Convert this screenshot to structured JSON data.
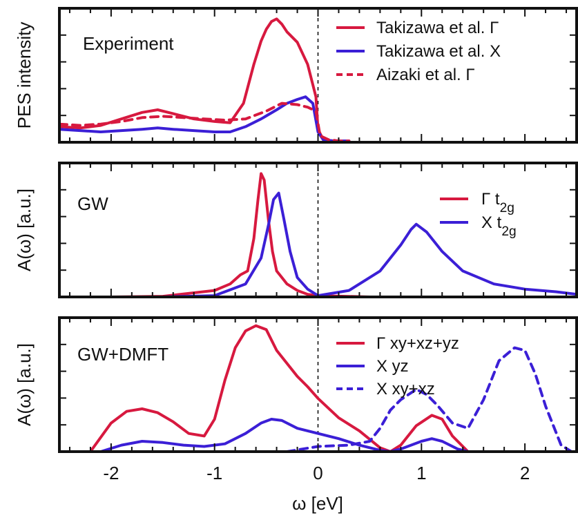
{
  "figure": {
    "xlabel": "ω [eV]"
  },
  "chart_data": [
    {
      "type": "line",
      "id": "panel-experiment",
      "panel_label": "Experiment",
      "ylabel": "PES intensity",
      "xlim": [
        -2.5,
        2.5
      ],
      "ylim": [
        0,
        1.0
      ],
      "x_ticks": [
        -2,
        -1,
        0,
        1,
        2
      ],
      "legend_position": "top-right",
      "series": [
        {
          "name": "Takizawa et al. Γ",
          "color": "#d7193f",
          "dash": "solid",
          "x": [
            -2.5,
            -2.3,
            -2.1,
            -1.9,
            -1.7,
            -1.55,
            -1.4,
            -1.2,
            -1.0,
            -0.85,
            -0.72,
            -0.62,
            -0.55,
            -0.5,
            -0.45,
            -0.4,
            -0.35,
            -0.3,
            -0.2,
            -0.1,
            -0.02,
            0.0,
            0.05,
            0.15,
            0.3
          ],
          "y": [
            0.12,
            0.11,
            0.13,
            0.18,
            0.23,
            0.25,
            0.22,
            0.18,
            0.16,
            0.15,
            0.3,
            0.6,
            0.78,
            0.87,
            0.93,
            0.95,
            0.91,
            0.85,
            0.77,
            0.6,
            0.35,
            0.1,
            0.02,
            0.01,
            0.01
          ]
        },
        {
          "name": "Takizawa et al. X",
          "color": "#3b1fd6",
          "dash": "solid",
          "x": [
            -2.5,
            -2.3,
            -2.1,
            -1.9,
            -1.7,
            -1.55,
            -1.4,
            -1.2,
            -1.0,
            -0.85,
            -0.7,
            -0.55,
            -0.4,
            -0.3,
            -0.2,
            -0.12,
            -0.05,
            0.0,
            0.05,
            0.15,
            0.3
          ],
          "y": [
            0.1,
            0.09,
            0.08,
            0.09,
            0.1,
            0.11,
            0.1,
            0.09,
            0.08,
            0.08,
            0.12,
            0.18,
            0.25,
            0.3,
            0.33,
            0.35,
            0.3,
            0.08,
            0.02,
            0.01,
            0.01
          ]
        },
        {
          "name": "Aizaki et al. Γ",
          "color": "#d7193f",
          "dash": "dashed",
          "x": [
            -2.5,
            -2.3,
            -2.1,
            -1.9,
            -1.7,
            -1.5,
            -1.3,
            -1.1,
            -0.9,
            -0.7,
            -0.5,
            -0.35,
            -0.2,
            -0.1,
            -0.02,
            0.02,
            0.1,
            0.2,
            0.3
          ],
          "y": [
            0.14,
            0.13,
            0.14,
            0.16,
            0.19,
            0.2,
            0.19,
            0.18,
            0.17,
            0.18,
            0.24,
            0.3,
            0.29,
            0.27,
            0.24,
            0.05,
            0.02,
            0.01,
            0.01
          ]
        }
      ]
    },
    {
      "type": "line",
      "id": "panel-gw",
      "panel_label": "GW",
      "ylabel": "A(ω) [a.u.]",
      "xlim": [
        -2.5,
        2.5
      ],
      "ylim": [
        0,
        1.0
      ],
      "x_ticks": [
        -2,
        -1,
        0,
        1,
        2
      ],
      "legend_position": "top-right",
      "series": [
        {
          "name": "Γ t2g",
          "color": "#d7193f",
          "dash": "solid",
          "x": [
            -2.0,
            -1.5,
            -1.0,
            -0.85,
            -0.75,
            -0.68,
            -0.62,
            -0.58,
            -0.55,
            -0.52,
            -0.48,
            -0.44,
            -0.4,
            -0.35,
            -0.3,
            -0.2,
            -0.1,
            0.0,
            0.5,
            1.0,
            1.5,
            2.0,
            2.5
          ],
          "y": [
            0.0,
            0.005,
            0.05,
            0.1,
            0.17,
            0.2,
            0.45,
            0.75,
            0.95,
            0.9,
            0.6,
            0.35,
            0.2,
            0.15,
            0.1,
            0.05,
            0.02,
            0.01,
            0.0,
            0.0,
            0.0,
            0.0,
            0.0
          ]
        },
        {
          "name": "X t2g",
          "color": "#3b1fd6",
          "dash": "solid",
          "x": [
            -1.5,
            -1.0,
            -0.7,
            -0.55,
            -0.48,
            -0.43,
            -0.38,
            -0.33,
            -0.27,
            -0.2,
            -0.1,
            0.0,
            0.3,
            0.6,
            0.8,
            0.9,
            0.95,
            1.05,
            1.2,
            1.4,
            1.7,
            2.0,
            2.3,
            2.5
          ],
          "y": [
            0.0,
            0.01,
            0.1,
            0.3,
            0.55,
            0.75,
            0.8,
            0.6,
            0.35,
            0.15,
            0.06,
            0.01,
            0.05,
            0.2,
            0.4,
            0.52,
            0.56,
            0.5,
            0.35,
            0.2,
            0.1,
            0.06,
            0.04,
            0.02
          ]
        }
      ]
    },
    {
      "type": "line",
      "id": "panel-gwdmft",
      "panel_label": "GW+DMFT",
      "ylabel": "A(ω) [a.u.]",
      "xlim": [
        -2.5,
        2.5
      ],
      "ylim": [
        0,
        1.0
      ],
      "x_ticks": [
        -2,
        -1,
        0,
        1,
        2
      ],
      "legend_position": "top-right",
      "series": [
        {
          "name": "Γ xy+xz+yz",
          "color": "#d7193f",
          "dash": "solid",
          "x": [
            -2.2,
            -2.0,
            -1.85,
            -1.7,
            -1.55,
            -1.4,
            -1.25,
            -1.1,
            -1.0,
            -0.9,
            -0.8,
            -0.7,
            -0.6,
            -0.5,
            -0.4,
            -0.3,
            -0.2,
            -0.1,
            0.0,
            0.2,
            0.4,
            0.6,
            0.7,
            0.8,
            0.95,
            1.1,
            1.2,
            1.3,
            1.45
          ],
          "y": [
            0.0,
            0.22,
            0.31,
            0.33,
            0.3,
            0.23,
            0.14,
            0.12,
            0.25,
            0.55,
            0.8,
            0.93,
            0.97,
            0.94,
            0.78,
            0.68,
            0.58,
            0.5,
            0.41,
            0.26,
            0.16,
            0.03,
            0.0,
            0.05,
            0.2,
            0.28,
            0.25,
            0.12,
            0.0
          ]
        },
        {
          "name": "X yz",
          "color": "#3b1fd6",
          "dash": "solid",
          "x": [
            -2.1,
            -1.9,
            -1.7,
            -1.5,
            -1.3,
            -1.1,
            -0.9,
            -0.7,
            -0.55,
            -0.45,
            -0.35,
            -0.2,
            0.0,
            0.2,
            0.4,
            0.6,
            0.7,
            0.8,
            0.9,
            1.0,
            1.1,
            1.2,
            1.35,
            1.45
          ],
          "y": [
            0.0,
            0.05,
            0.08,
            0.07,
            0.05,
            0.04,
            0.06,
            0.14,
            0.22,
            0.25,
            0.24,
            0.18,
            0.14,
            0.1,
            0.05,
            0.01,
            0.0,
            0.02,
            0.05,
            0.08,
            0.1,
            0.08,
            0.02,
            0.0
          ]
        },
        {
          "name": "X xy+xz",
          "color": "#3b1fd6",
          "dash": "dashed",
          "x": [
            -0.3,
            0.0,
            0.3,
            0.5,
            0.6,
            0.7,
            0.8,
            0.95,
            1.05,
            1.15,
            1.3,
            1.45,
            1.6,
            1.75,
            1.9,
            2.0,
            2.1,
            2.2,
            2.35,
            2.45
          ],
          "y": [
            0.0,
            0.04,
            0.05,
            0.08,
            0.18,
            0.32,
            0.4,
            0.48,
            0.44,
            0.36,
            0.22,
            0.18,
            0.4,
            0.7,
            0.8,
            0.78,
            0.6,
            0.35,
            0.05,
            0.0
          ]
        }
      ]
    }
  ]
}
